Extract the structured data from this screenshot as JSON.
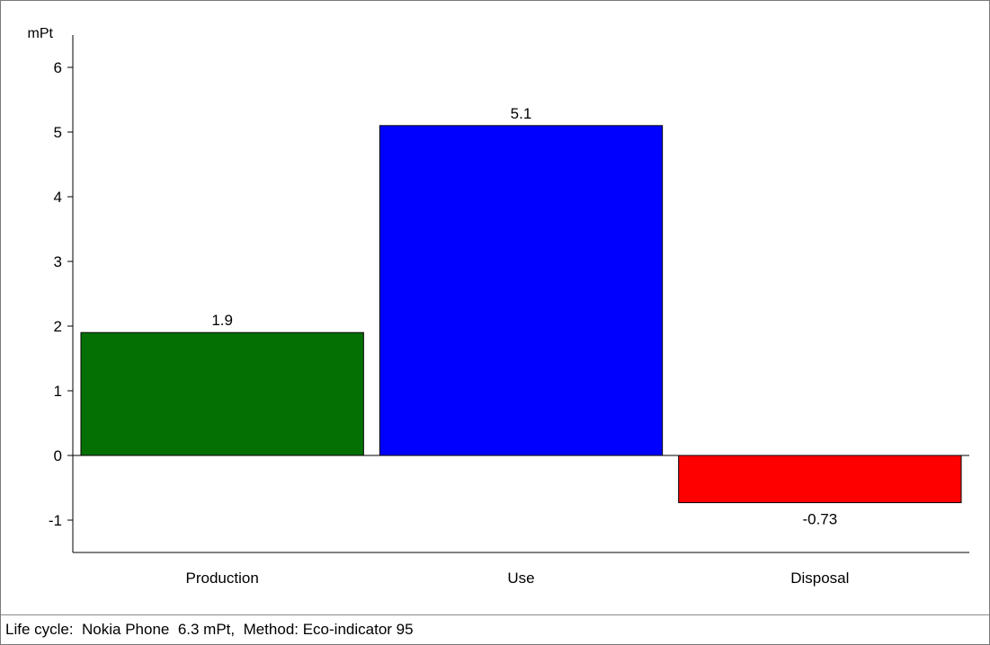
{
  "chart_data": {
    "type": "bar",
    "unit_label": "mPt",
    "categories": [
      "Production",
      "Use",
      "Disposal"
    ],
    "values": [
      1.9,
      5.1,
      -0.73
    ],
    "value_labels": [
      "1.9",
      "5.1",
      "-0.73"
    ],
    "bar_colors": [
      "#047004",
      "#0000ff",
      "#ff0000"
    ],
    "ylim": [
      -1.5,
      6.5
    ],
    "yticks": [
      -1,
      0,
      1,
      2,
      3,
      4,
      5,
      6
    ],
    "ytick_labels": [
      "-1",
      "0",
      "1",
      "2",
      "3",
      "4",
      "5",
      "6"
    ],
    "grid": false,
    "legend": "none"
  },
  "footer": {
    "text": "Life cycle:  Nokia Phone  6.3 mPt,  Method: Eco-indicator 95"
  }
}
